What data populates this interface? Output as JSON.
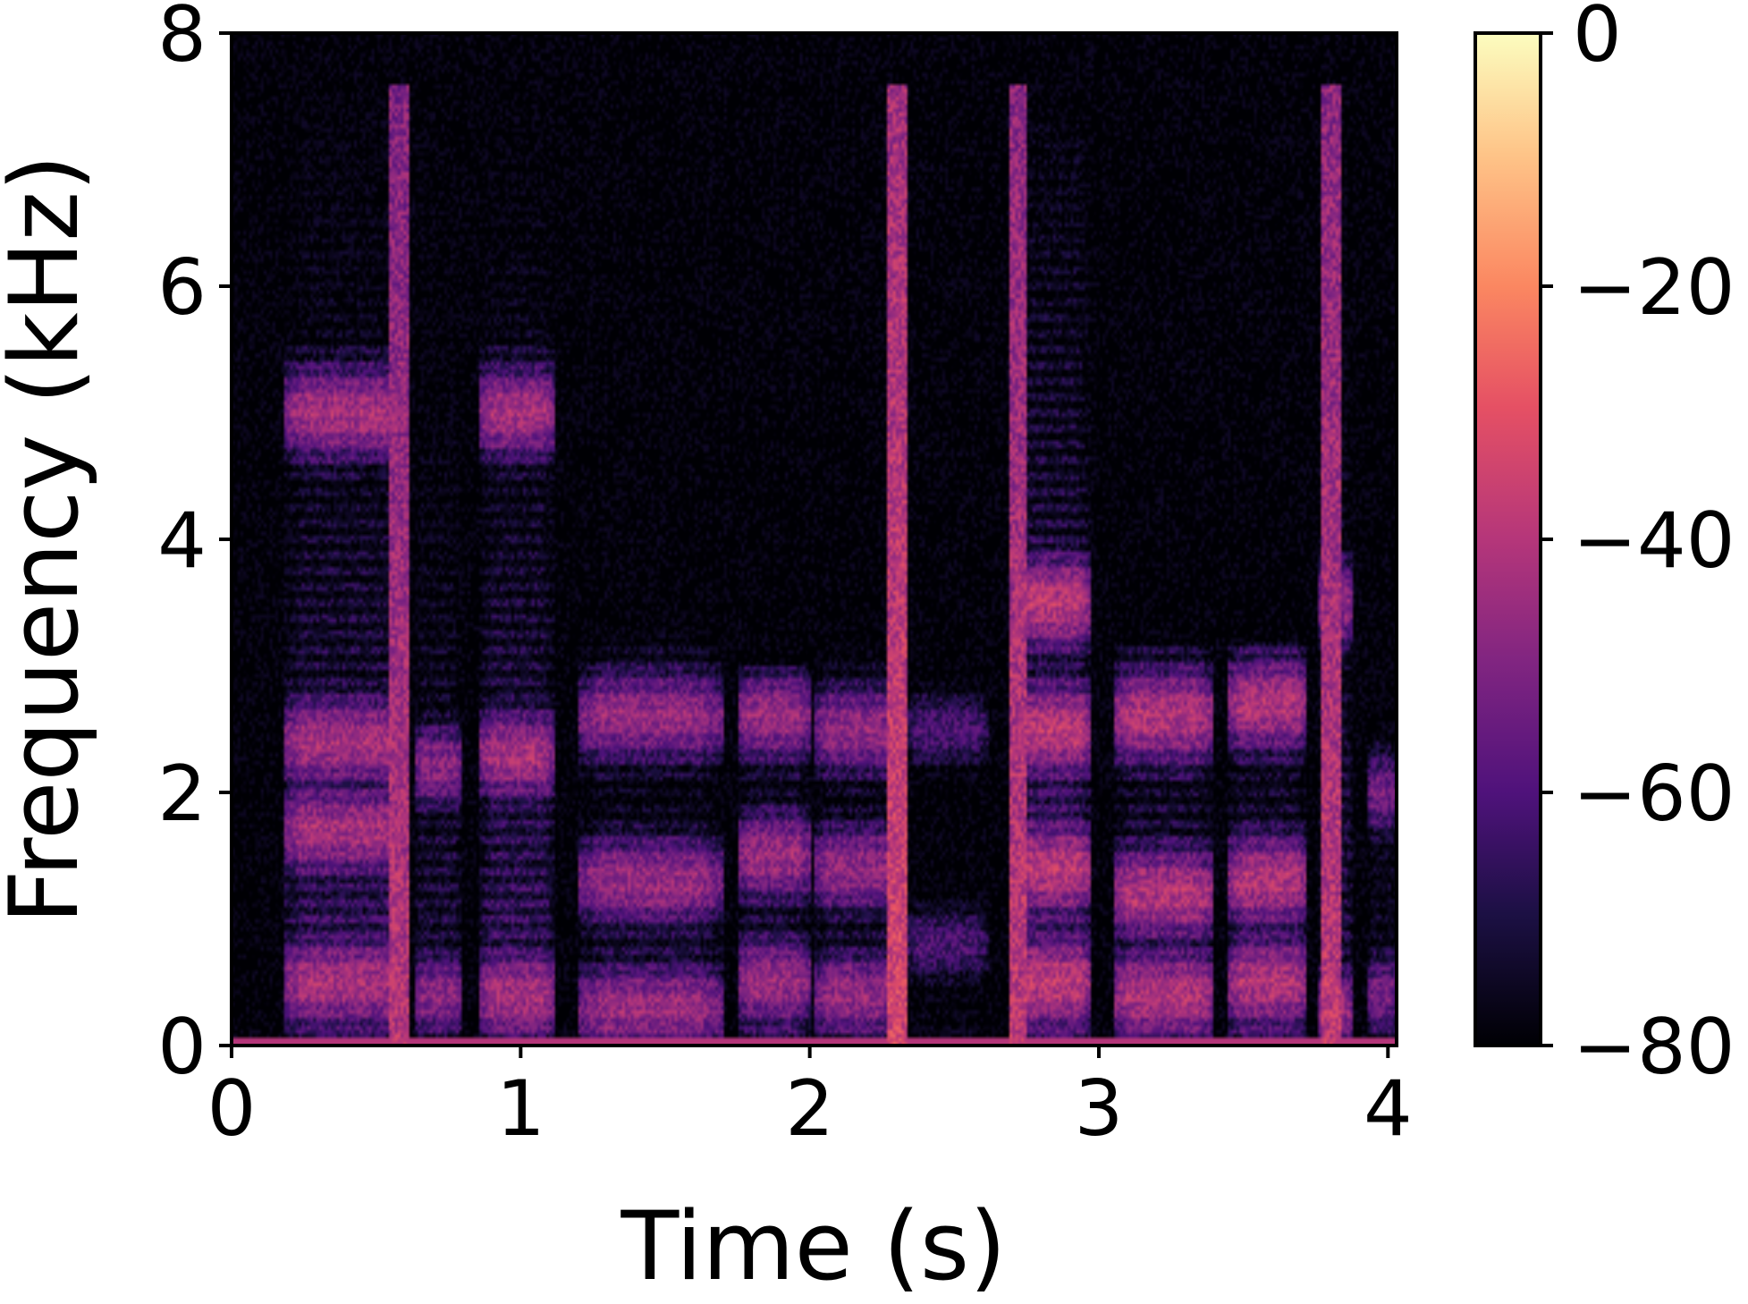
{
  "chart_data": {
    "type": "heatmap",
    "title": "",
    "xlabel": "Time (s)",
    "ylabel": "Frequency (kHz)",
    "xlim": [
      0,
      4.03
    ],
    "ylim": [
      0,
      8
    ],
    "xticks": [
      0,
      1,
      2,
      3,
      4
    ],
    "yticks": [
      0,
      2,
      4,
      6,
      8
    ],
    "colormap": "magma",
    "colorbar": {
      "min": -80,
      "max": 0,
      "ticks": [
        0,
        -20,
        -40,
        -60,
        -80
      ],
      "tick_labels": [
        "0",
        "−20",
        "−40",
        "−60",
        "−80"
      ]
    },
    "grid": false,
    "harmonic_pitch_khz": 0.125,
    "segments": [
      {
        "t0": 0.18,
        "t1": 0.6,
        "level": -24,
        "top_khz": 7.5,
        "formants": [
          0.5,
          1.7,
          2.4,
          5.0
        ]
      },
      {
        "t0": 0.63,
        "t1": 0.8,
        "level": -30,
        "top_khz": 7.5,
        "formants": [
          0.4,
          2.2
        ]
      },
      {
        "t0": 0.86,
        "t1": 1.12,
        "level": -24,
        "top_khz": 7.3,
        "formants": [
          0.4,
          2.3,
          5.0
        ]
      },
      {
        "t0": 1.2,
        "t1": 1.7,
        "level": -27,
        "top_khz": 3.3,
        "formants": [
          0.3,
          1.3,
          2.6
        ]
      },
      {
        "t0": 1.75,
        "t1": 2.0,
        "level": -26,
        "top_khz": 3.0,
        "formants": [
          0.5,
          1.5,
          2.6
        ]
      },
      {
        "t0": 2.02,
        "t1": 2.3,
        "level": -28,
        "top_khz": 3.2,
        "formants": [
          0.4,
          1.4,
          2.5
        ]
      },
      {
        "t0": 2.33,
        "t1": 2.62,
        "level": -42,
        "top_khz": 3.0,
        "formants": [
          0.8,
          2.5
        ]
      },
      {
        "t0": 2.72,
        "t1": 2.97,
        "level": -20,
        "top_khz": 7.3,
        "formants": [
          0.5,
          1.4,
          2.5,
          3.5
        ]
      },
      {
        "t0": 3.05,
        "t1": 3.4,
        "level": -22,
        "top_khz": 3.2,
        "formants": [
          0.4,
          1.2,
          2.6
        ]
      },
      {
        "t0": 3.45,
        "t1": 3.72,
        "level": -22,
        "top_khz": 3.2,
        "formants": [
          0.5,
          1.3,
          2.7
        ]
      },
      {
        "t0": 3.76,
        "t1": 3.88,
        "level": -28,
        "top_khz": 7.5,
        "formants": [
          0.3,
          3.5
        ]
      },
      {
        "t0": 3.93,
        "t1": 4.03,
        "level": -34,
        "top_khz": 5.0,
        "formants": [
          0.4,
          2.0
        ]
      }
    ],
    "fricatives": [
      {
        "t": 0.58,
        "level": -40,
        "top_khz": 7.6
      },
      {
        "t": 2.3,
        "level": -34,
        "top_khz": 7.6
      },
      {
        "t": 2.72,
        "level": -38,
        "top_khz": 7.6
      },
      {
        "t": 3.8,
        "level": -38,
        "top_khz": 7.6
      }
    ]
  }
}
